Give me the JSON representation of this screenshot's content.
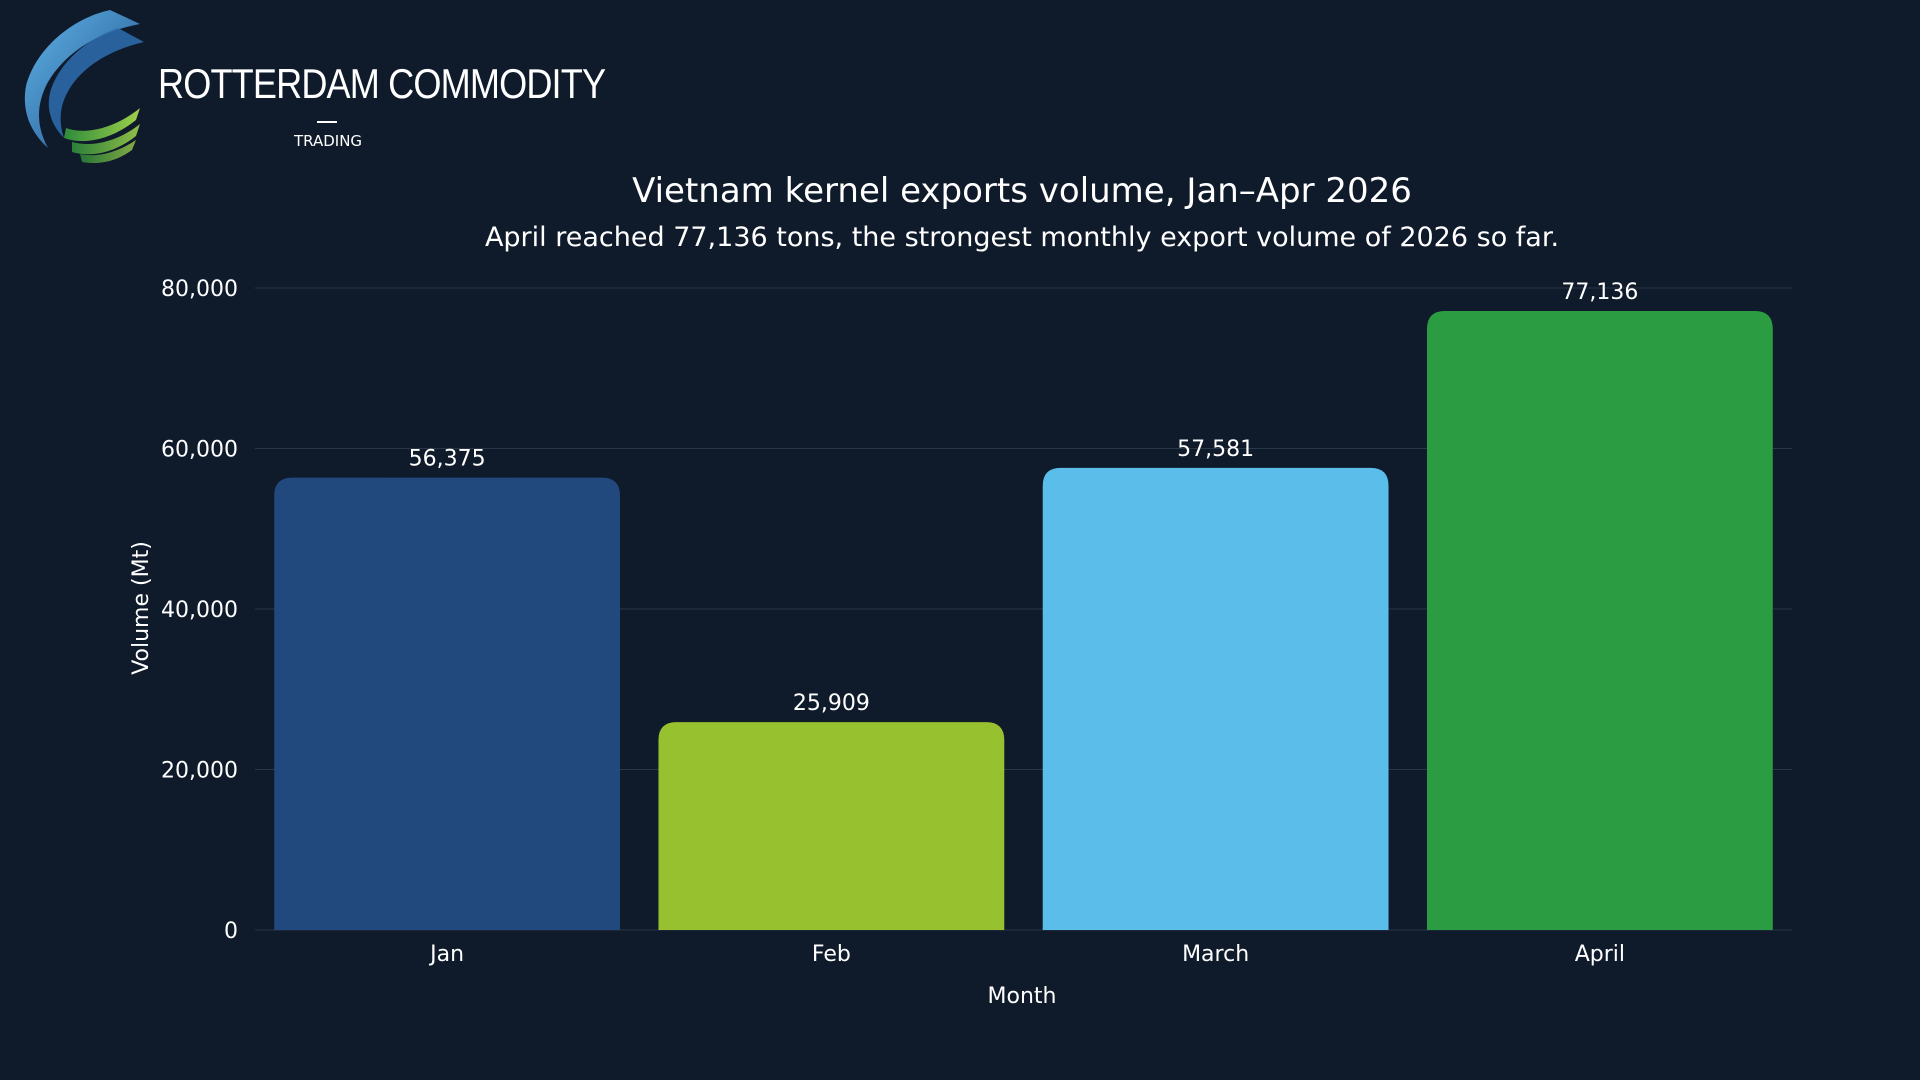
{
  "brand": {
    "name": "ROTTERDAM COMMODITY",
    "tagline": "TRADING",
    "logo_icon": "swoosh-logo-icon",
    "colors": {
      "blue": "#3a7fc4",
      "green": "#8cc63f"
    }
  },
  "chart_data": {
    "type": "bar",
    "title": "Vietnam kernel exports volume, Jan–Apr 2026",
    "subtitle": "April reached 77,136 tons, the strongest monthly export volume of 2026 so far.",
    "xlabel": "Month",
    "ylabel": "Volume (Mt)",
    "categories": [
      "Jan",
      "Feb",
      "March",
      "April"
    ],
    "values": [
      56375,
      25909,
      57581,
      77136
    ],
    "value_labels": [
      "56,375",
      "25,909",
      "57,581",
      "77,136"
    ],
    "colors": [
      "#22497d",
      "#98c12f",
      "#5bbde9",
      "#2b9c42"
    ],
    "ylim": [
      0,
      80000
    ],
    "yticks": [
      0,
      20000,
      40000,
      60000,
      80000
    ],
    "ytick_labels": [
      "0",
      "20,000",
      "40,000",
      "60,000",
      "80,000"
    ],
    "grid": true,
    "legend": "none"
  }
}
